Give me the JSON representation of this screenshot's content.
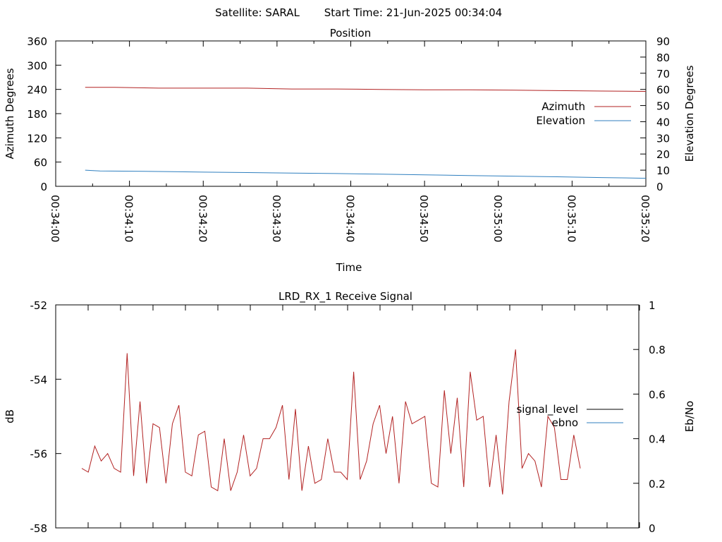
{
  "header": {
    "satellite": "Satellite: SARAL",
    "start_time": "Start Time: 21-Jun-2025 00:34:04"
  },
  "chart_data": [
    {
      "type": "line",
      "title": "Position",
      "xlabel": "Time",
      "ylabel": "Azimuth Degrees",
      "y2label": "Elevation Degrees",
      "x_ticks": [
        "00:34:00",
        "00:34:10",
        "00:34:20",
        "00:34:30",
        "00:34:40",
        "00:34:50",
        "00:35:00",
        "00:35:10",
        "00:35:20"
      ],
      "xlim_seconds": [
        0,
        80
      ],
      "ylim": [
        0,
        360
      ],
      "y_ticks": [
        "0",
        "60",
        "120",
        "180",
        "240",
        "300",
        "360"
      ],
      "y2lim": [
        0,
        90
      ],
      "y2_ticks": [
        "0",
        "10",
        "20",
        "30",
        "40",
        "50",
        "60",
        "70",
        "80",
        "90"
      ],
      "grid": false,
      "legend_position": "right-center",
      "series": [
        {
          "name": "Azimuth",
          "axis": "left",
          "color": "#b22222",
          "x_seconds": [
            4,
            8,
            14,
            20,
            26,
            32,
            38,
            44,
            50,
            56,
            62,
            68,
            74,
            80
          ],
          "values": [
            245,
            245,
            243,
            243,
            243,
            241,
            241,
            240,
            239,
            239,
            238,
            237,
            236,
            235
          ]
        },
        {
          "name": "Elevation",
          "axis": "right",
          "color": "#2f7fbf",
          "x_seconds": [
            4,
            6,
            12,
            20,
            26,
            32,
            38,
            44,
            50,
            56,
            62,
            68,
            74,
            80
          ],
          "values": [
            10,
            9.5,
            9.3,
            8.8,
            8.5,
            8.2,
            7.9,
            7.5,
            7.1,
            6.7,
            6.3,
            5.9,
            5.4,
            5
          ]
        }
      ]
    },
    {
      "type": "line",
      "title": "LRD_RX_1 Receive Signal",
      "xlabel": "",
      "ylabel": "dB",
      "y2label": "Eb/No",
      "ylim": [
        -58,
        -52
      ],
      "y_ticks": [
        "-58",
        "-56",
        "-54",
        "-52"
      ],
      "y2lim": [
        0,
        1
      ],
      "y2_ticks": [
        "0",
        "0.2",
        "0.4",
        "0.6",
        "0.8",
        "1"
      ],
      "grid": false,
      "legend_position": "right-center",
      "series": [
        {
          "name": "signal_level",
          "axis": "left",
          "color": "#b22222",
          "x_index": [
            0,
            1,
            2,
            3,
            4,
            5,
            6,
            7,
            8,
            9,
            10,
            11,
            12,
            13,
            14,
            15,
            16,
            17,
            18,
            19,
            20,
            21,
            22,
            23,
            24,
            25,
            26,
            27,
            28,
            29,
            30,
            31,
            32,
            33,
            34,
            35,
            36,
            37,
            38,
            39,
            40,
            41,
            42,
            43,
            44,
            45,
            46,
            47,
            48,
            49,
            50,
            51,
            52,
            53,
            54,
            55,
            56,
            57,
            58,
            59,
            60,
            61,
            62,
            63,
            64,
            65,
            66,
            67,
            68,
            69,
            70,
            71,
            72,
            73,
            74,
            75,
            76,
            77
          ],
          "values": [
            -56.4,
            -56.5,
            -55.8,
            -56.2,
            -56.0,
            -56.4,
            -56.5,
            -53.3,
            -56.6,
            -54.6,
            -56.8,
            -55.2,
            -55.3,
            -56.8,
            -55.2,
            -54.7,
            -56.5,
            -56.6,
            -55.5,
            -55.4,
            -56.9,
            -57.0,
            -55.6,
            -57.0,
            -56.5,
            -55.5,
            -56.6,
            -56.4,
            -55.6,
            -55.6,
            -55.3,
            -54.7,
            -56.7,
            -54.8,
            -57.0,
            -55.8,
            -56.8,
            -56.7,
            -55.6,
            -56.5,
            -56.5,
            -56.7,
            -53.8,
            -56.7,
            -56.2,
            -55.2,
            -54.7,
            -56.0,
            -55.0,
            -56.8,
            -54.6,
            -55.2,
            -55.1,
            -55.0,
            -56.8,
            -56.9,
            -54.3,
            -56.0,
            -54.5,
            -56.9,
            -53.8,
            -55.1,
            -55.0,
            -56.9,
            -55.5,
            -57.1,
            -54.6,
            -53.2,
            -56.4,
            -56.0,
            -56.2,
            -56.9,
            -55.0,
            -55.3,
            -56.7,
            -56.7,
            -55.5,
            -56.4
          ]
        },
        {
          "name": "ebno",
          "axis": "right",
          "color": "#2f7fbf",
          "values": []
        }
      ]
    }
  ]
}
